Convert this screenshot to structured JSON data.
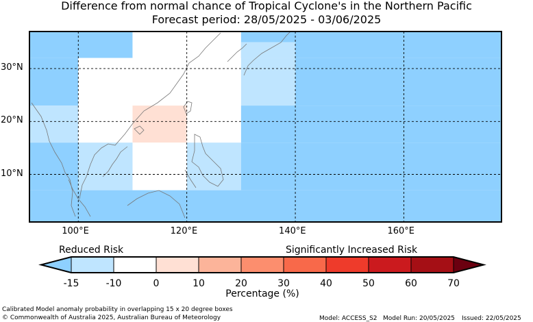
{
  "title": "Difference from normal chance of Tropical Cyclone's in the Northern Pacific",
  "subtitle": "Forecast period: 28/05/2025 - 03/06/2025",
  "map": {
    "lon_range": [
      91,
      178
    ],
    "lat_range": [
      1,
      37
    ],
    "lat_labels": [
      {
        "lat": 30,
        "label": "30°N"
      },
      {
        "lat": 20,
        "label": "20°N"
      },
      {
        "lat": 10,
        "label": "10°N"
      }
    ],
    "lon_labels": [
      {
        "lon": 100,
        "label": "100°E"
      },
      {
        "lon": 120,
        "label": "120°E"
      },
      {
        "lon": 140,
        "label": "140°E"
      },
      {
        "lon": 160,
        "label": "160°E"
      }
    ],
    "grid_lons": [
      100,
      120,
      140,
      160
    ],
    "grid_lats": [
      10,
      20,
      30
    ],
    "cells": [
      {
        "lon0": 91,
        "lon1": 110,
        "lat0": 32,
        "lat1": 37,
        "color": "#8ed0ff"
      },
      {
        "lon0": 110,
        "lon1": 130,
        "lat0": 32,
        "lat1": 37,
        "color": "#ffffff"
      },
      {
        "lon0": 130,
        "lon1": 178,
        "lat0": 32,
        "lat1": 37,
        "color": "#8ed0ff"
      },
      {
        "lon0": 91,
        "lon1": 100,
        "lat0": 23,
        "lat1": 32,
        "color": "#8ed0ff"
      },
      {
        "lon0": 100,
        "lon1": 130,
        "lat0": 23,
        "lat1": 32,
        "color": "#ffffff"
      },
      {
        "lon0": 130,
        "lon1": 140,
        "lat0": 23,
        "lat1": 32,
        "color": "#bfe5ff"
      },
      {
        "lon0": 140,
        "lon1": 178,
        "lat0": 23,
        "lat1": 32,
        "color": "#8ed0ff"
      },
      {
        "lon0": 130,
        "lon1": 140,
        "lat0": 32,
        "lat1": 35,
        "color": "#bfe5ff"
      },
      {
        "lon0": 91,
        "lon1": 100,
        "lat0": 16,
        "lat1": 23,
        "color": "#bfe5ff"
      },
      {
        "lon0": 100,
        "lon1": 110,
        "lat0": 16,
        "lat1": 23,
        "color": "#ffffff"
      },
      {
        "lon0": 110,
        "lon1": 120,
        "lat0": 16,
        "lat1": 23,
        "color": "#ffe0d4"
      },
      {
        "lon0": 120,
        "lon1": 130,
        "lat0": 16,
        "lat1": 23,
        "color": "#ffffff"
      },
      {
        "lon0": 130,
        "lon1": 178,
        "lat0": 16,
        "lat1": 23,
        "color": "#8ed0ff"
      },
      {
        "lon0": 91,
        "lon1": 100,
        "lat0": 7,
        "lat1": 16,
        "color": "#8ed0ff"
      },
      {
        "lon0": 100,
        "lon1": 110,
        "lat0": 7,
        "lat1": 16,
        "color": "#bfe5ff"
      },
      {
        "lon0": 110,
        "lon1": 120,
        "lat0": 7,
        "lat1": 16,
        "color": "#ffffff"
      },
      {
        "lon0": 120,
        "lon1": 130,
        "lat0": 7,
        "lat1": 16,
        "color": "#bfe5ff"
      },
      {
        "lon0": 130,
        "lon1": 178,
        "lat0": 7,
        "lat1": 16,
        "color": "#8ed0ff"
      },
      {
        "lon0": 91,
        "lon1": 178,
        "lat0": 1,
        "lat1": 7,
        "color": "#8ed0ff"
      }
    ]
  },
  "colorbar": {
    "left_label": "Reduced Risk",
    "right_label": "Significantly Increased Risk",
    "xlabel": "Percentage (%)",
    "ticks": [
      "-15",
      "-10",
      "0",
      "10",
      "20",
      "30",
      "40",
      "50",
      "60",
      "70"
    ],
    "low_extend_color": "#8ed0ff",
    "high_extend_color": "#6b0010",
    "bins": [
      "#bfe5ff",
      "#ffffff",
      "#ffe0d4",
      "#fcb49a",
      "#fc8e6e",
      "#f8694a",
      "#ee3b2b",
      "#cb1a1e",
      "#a50f15"
    ]
  },
  "footer": {
    "note": "Calibrated Model anomaly probability in overlapping 15 x 20 degree boxes",
    "copyright": "© Commonwealth of Australia 2025, Australian Bureau of Meteorology",
    "model": "Model: ACCESS_S2",
    "run": "Model Run: 20/05/2025",
    "issued": "Issued: 22/05/2025"
  }
}
